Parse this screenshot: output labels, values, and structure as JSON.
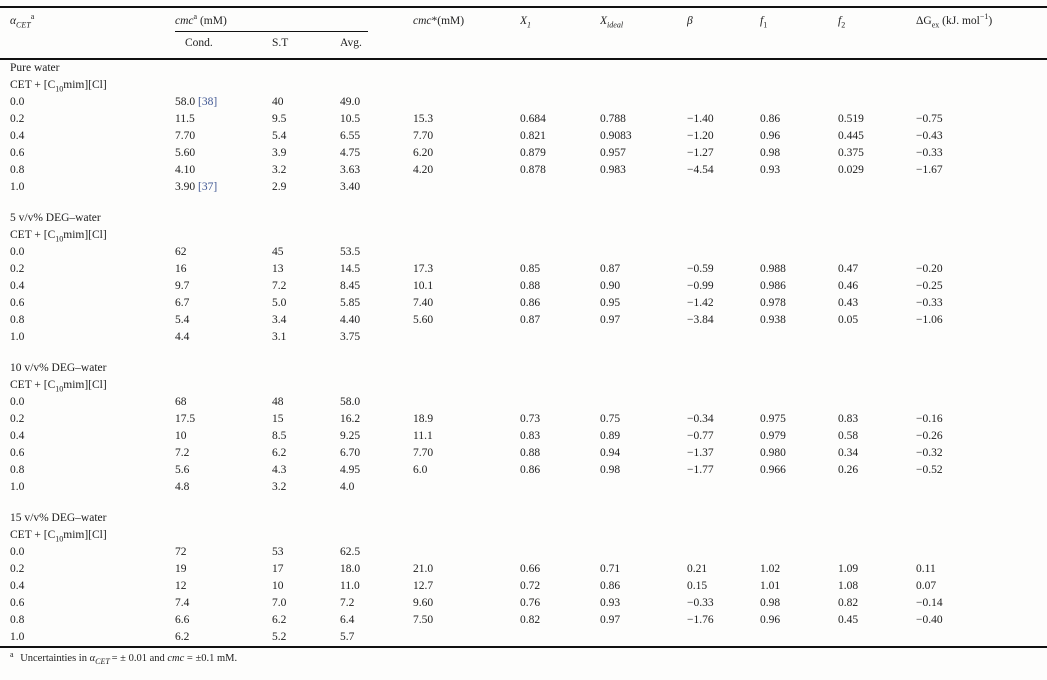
{
  "page": {
    "background": "#fdfdfc",
    "text_color": "#1d1d1d",
    "rule_color": "#111111",
    "citation_color": "#3f5692"
  },
  "table": {
    "header": {
      "alpha_cet": [
        {
          "t": "α",
          "s": "i"
        },
        {
          "t": "CET",
          "s": "isub"
        },
        {
          "t": "a",
          "s": "sup"
        }
      ],
      "cmc_group": [
        {
          "t": "cmc",
          "s": "i"
        },
        {
          "t": "a",
          "s": "sup"
        },
        {
          "t": " (mM)",
          "s": "n"
        }
      ],
      "sub_cond": "Cond.",
      "sub_st": "S.T",
      "sub_avg": "Avg.",
      "cmc_star": [
        {
          "t": "cmc",
          "s": "i"
        },
        {
          "t": "*",
          "s": "n"
        },
        {
          "t": "(mM)",
          "s": "n"
        }
      ],
      "x1": [
        {
          "t": "X",
          "s": "i"
        },
        {
          "t": "1",
          "s": "isub"
        }
      ],
      "x_ideal": [
        {
          "t": "X",
          "s": "i"
        },
        {
          "t": "ideal",
          "s": "isub"
        }
      ],
      "beta": [
        {
          "t": "β",
          "s": "i"
        }
      ],
      "f1": [
        {
          "t": "f",
          "s": "i"
        },
        {
          "t": "1",
          "s": "sub"
        }
      ],
      "f2": [
        {
          "t": "f",
          "s": "i"
        },
        {
          "t": "2",
          "s": "sub"
        }
      ],
      "dg_ex": [
        {
          "t": "ΔG",
          "s": "n"
        },
        {
          "t": "ex",
          "s": "sub"
        },
        {
          "t": " (kJ. mol",
          "s": "n"
        },
        {
          "t": "−1",
          "s": "sup"
        },
        {
          "t": ")",
          "s": "n"
        }
      ]
    },
    "row_fields": [
      "alpha_cet",
      "cmc_cond",
      "cmc_cond_ref",
      "cmc_st",
      "cmc_avg",
      "cmc_star",
      "x1",
      "x_ideal",
      "beta",
      "f1",
      "f2",
      "dg_ex"
    ],
    "sections": [
      {
        "title": "Pure water",
        "system": [
          {
            "t": "CET + [C",
            "s": "n"
          },
          {
            "t": "10",
            "s": "sub"
          },
          {
            "t": "mim][Cl]",
            "s": "n"
          }
        ],
        "rows": [
          [
            "0.0",
            "58.0",
            "[38]",
            "40",
            "49.0",
            "",
            "",
            "",
            "",
            "",
            "",
            ""
          ],
          [
            "0.2",
            "11.5",
            "",
            "9.5",
            "10.5",
            "15.3",
            "0.684",
            "0.788",
            "−1.40",
            "0.86",
            "0.519",
            "−0.75"
          ],
          [
            "0.4",
            "7.70",
            "",
            "5.4",
            "6.55",
            "7.70",
            "0.821",
            "0.9083",
            "−1.20",
            "0.96",
            "0.445",
            "−0.43"
          ],
          [
            "0.6",
            "5.60",
            "",
            "3.9",
            "4.75",
            "6.20",
            "0.879",
            "0.957",
            "−1.27",
            "0.98",
            "0.375",
            "−0.33"
          ],
          [
            "0.8",
            "4.10",
            "",
            "3.2",
            "3.63",
            "4.20",
            "0.878",
            "0.983",
            "−4.54",
            "0.93",
            "0.029",
            "−1.67"
          ],
          [
            "1.0",
            "3.90",
            "[37]",
            "2.9",
            "3.40",
            "",
            "",
            "",
            "",
            "",
            "",
            ""
          ]
        ]
      },
      {
        "title": "5 v/v% DEG–water",
        "system": [
          {
            "t": "CET + [C",
            "s": "n"
          },
          {
            "t": "10",
            "s": "sub"
          },
          {
            "t": "mim][Cl]",
            "s": "n"
          }
        ],
        "rows": [
          [
            "0.0",
            "62",
            "",
            "45",
            "53.5",
            "",
            "",
            "",
            "",
            "",
            "",
            ""
          ],
          [
            "0.2",
            "16",
            "",
            "13",
            "14.5",
            "17.3",
            "0.85",
            "0.87",
            "−0.59",
            "0.988",
            "0.47",
            "−0.20"
          ],
          [
            "0.4",
            "9.7",
            "",
            "7.2",
            "8.45",
            "10.1",
            "0.88",
            "0.90",
            "−0.99",
            "0.986",
            "0.46",
            "−0.25"
          ],
          [
            "0.6",
            "6.7",
            "",
            "5.0",
            "5.85",
            "7.40",
            "0.86",
            "0.95",
            "−1.42",
            "0.978",
            "0.43",
            "−0.33"
          ],
          [
            "0.8",
            "5.4",
            "",
            "3.4",
            "4.40",
            "5.60",
            "0.87",
            "0.97",
            "−3.84",
            "0.938",
            "0.05",
            "−1.06"
          ],
          [
            "1.0",
            "4.4",
            "",
            "3.1",
            "3.75",
            "",
            "",
            "",
            "",
            "",
            "",
            ""
          ]
        ]
      },
      {
        "title": "10 v/v% DEG–water",
        "system": [
          {
            "t": "CET + [C",
            "s": "n"
          },
          {
            "t": "10",
            "s": "sub"
          },
          {
            "t": "mim][Cl]",
            "s": "n"
          }
        ],
        "rows": [
          [
            "0.0",
            "68",
            "",
            "48",
            "58.0",
            "",
            "",
            "",
            "",
            "",
            "",
            ""
          ],
          [
            "0.2",
            "17.5",
            "",
            "15",
            "16.2",
            "18.9",
            "0.73",
            "0.75",
            "−0.34",
            "0.975",
            "0.83",
            "−0.16"
          ],
          [
            "0.4",
            "10",
            "",
            "8.5",
            "9.25",
            "11.1",
            "0.83",
            "0.89",
            "−0.77",
            "0.979",
            "0.58",
            "−0.26"
          ],
          [
            "0.6",
            "7.2",
            "",
            "6.2",
            "6.70",
            "7.70",
            "0.88",
            "0.94",
            "−1.37",
            "0.980",
            "0.34",
            "−0.32"
          ],
          [
            "0.8",
            "5.6",
            "",
            "4.3",
            "4.95",
            "6.0",
            "0.86",
            "0.98",
            "−1.77",
            "0.966",
            "0.26",
            "−0.52"
          ],
          [
            "1.0",
            "4.8",
            "",
            "3.2",
            "4.0",
            "",
            "",
            "",
            "",
            "",
            "",
            ""
          ]
        ]
      },
      {
        "title": "15 v/v% DEG–water",
        "system": [
          {
            "t": "CET + [C",
            "s": "n"
          },
          {
            "t": "10",
            "s": "sub"
          },
          {
            "t": "mim][Cl]",
            "s": "n"
          }
        ],
        "rows": [
          [
            "0.0",
            "72",
            "",
            "53",
            "62.5",
            "",
            "",
            "",
            "",
            "",
            "",
            ""
          ],
          [
            "0.2",
            "19",
            "",
            "17",
            "18.0",
            "21.0",
            "0.66",
            "0.71",
            "0.21",
            "1.02",
            "1.09",
            "0.11"
          ],
          [
            "0.4",
            "12",
            "",
            "10",
            "11.0",
            "12.7",
            "0.72",
            "0.86",
            "0.15",
            "1.01",
            "1.08",
            "0.07"
          ],
          [
            "0.6",
            "7.4",
            "",
            "7.0",
            "7.2",
            "9.60",
            "0.76",
            "0.93",
            "−0.33",
            "0.98",
            "0.82",
            "−0.14"
          ],
          [
            "0.8",
            "6.6",
            "",
            "6.2",
            "6.4",
            "7.50",
            "0.82",
            "0.97",
            "−1.76",
            "0.96",
            "0.45",
            "−0.40"
          ],
          [
            "1.0",
            "6.2",
            "",
            "5.2",
            "5.7",
            "",
            "",
            "",
            "",
            "",
            "",
            ""
          ]
        ]
      }
    ],
    "footnote": [
      {
        "t": "a",
        "s": "sup"
      },
      {
        "t": " Uncertainties in ",
        "s": "n"
      },
      {
        "t": "α",
        "s": "i"
      },
      {
        "t": "CET ",
        "s": "isub"
      },
      {
        "t": "= ± 0.01 and ",
        "s": "n"
      },
      {
        "t": "cmc",
        "s": "i"
      },
      {
        "t": " = ±0.1 mM.",
        "s": "n"
      }
    ]
  }
}
